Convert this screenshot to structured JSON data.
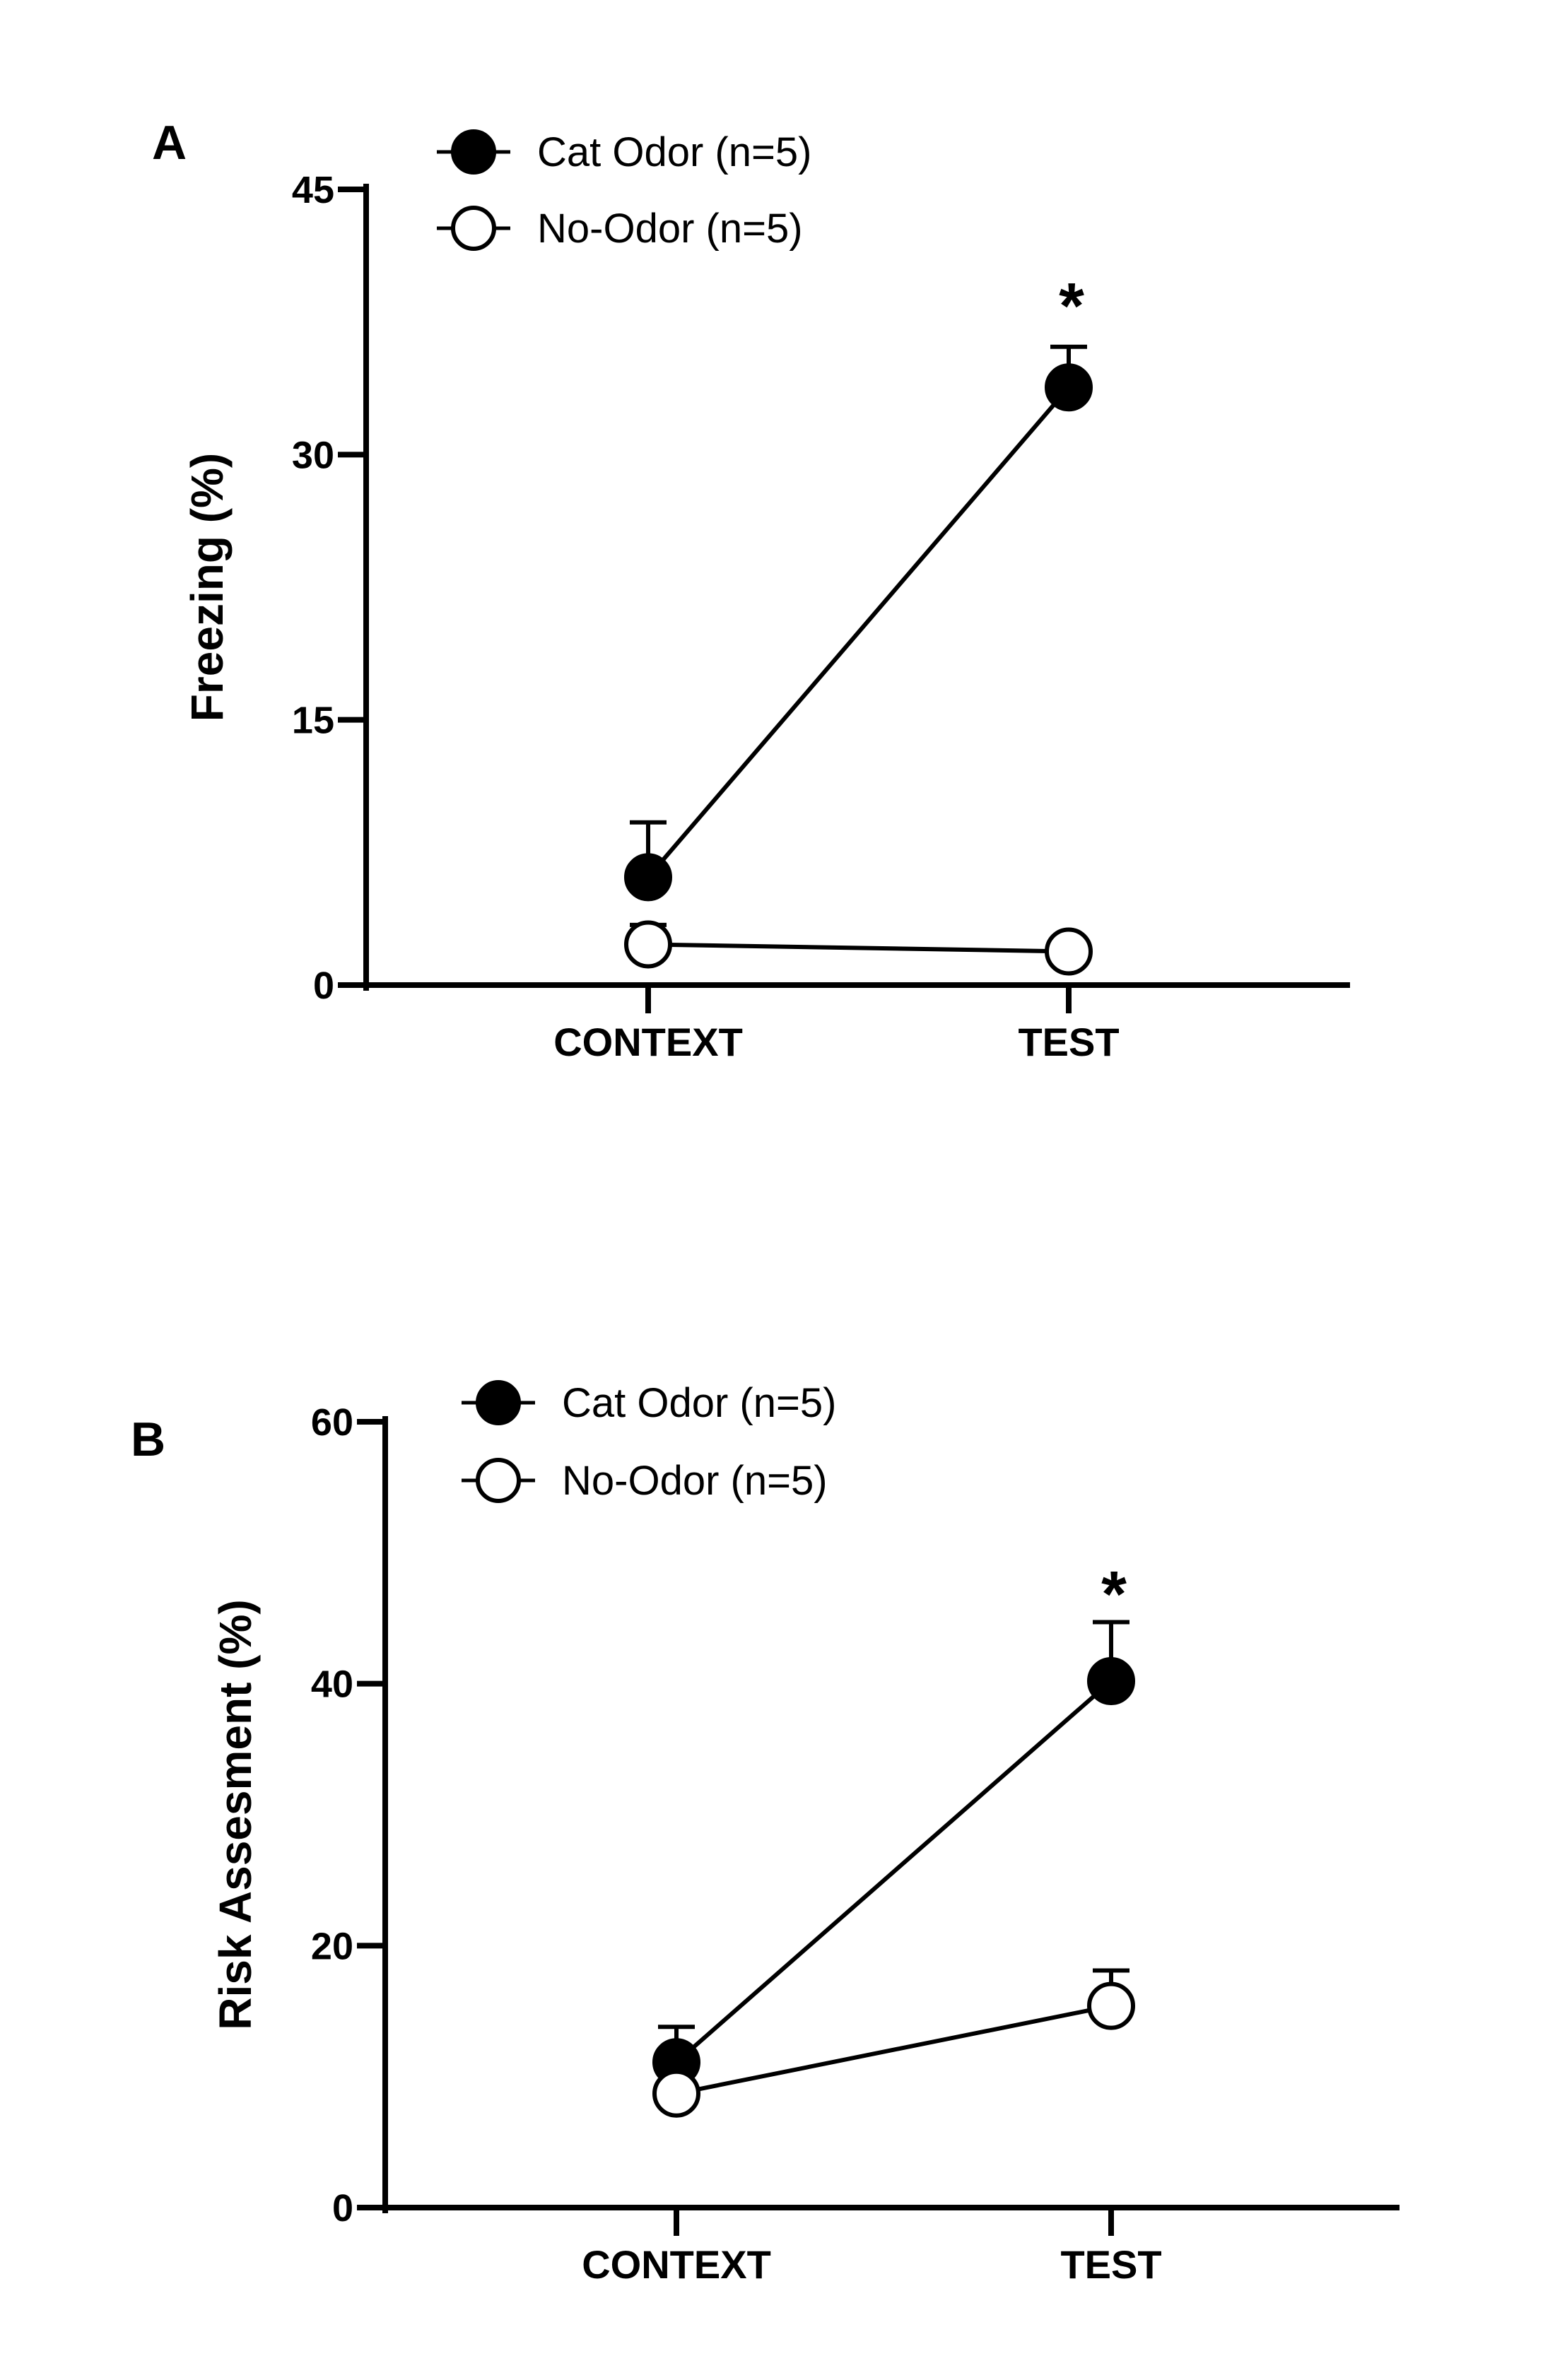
{
  "chart_data": [
    {
      "type": "line",
      "panel_label": "A",
      "categories": [
        "CONTEXT",
        "TEST"
      ],
      "ylabel": "Freezing (%)",
      "xlabel": "",
      "ylim": [
        0,
        45
      ],
      "yticks": [
        0,
        15,
        30,
        45
      ],
      "grid": false,
      "legend_placement": "top-left",
      "series": [
        {
          "name": "Cat Odor (n=5)",
          "marker": "filled-circle",
          "values": [
            6.1,
            33.8
          ],
          "errors": [
            3.1,
            2.3
          ]
        },
        {
          "name": "No-Odor (n=5)",
          "marker": "open-circle",
          "values": [
            2.3,
            1.9
          ],
          "errors": [
            1.1,
            0
          ]
        }
      ],
      "annotations": [
        {
          "text": "*",
          "category": "TEST",
          "value": 38.9
        }
      ]
    },
    {
      "type": "line",
      "panel_label": "B",
      "categories": [
        "CONTEXT",
        "TEST"
      ],
      "ylabel": "Risk Assesment (%)",
      "xlabel": "",
      "ylim": [
        0,
        60
      ],
      "yticks": [
        0,
        20,
        40,
        60
      ],
      "grid": false,
      "legend_placement": "top-left",
      "series": [
        {
          "name": "Cat Odor (n=5)",
          "marker": "filled-circle",
          "values": [
            11.1,
            40.2
          ],
          "errors": [
            2.7,
            4.5
          ]
        },
        {
          "name": "No-Odor (n=5)",
          "marker": "open-circle",
          "values": [
            8.7,
            15.4
          ],
          "errors": [
            0,
            2.7
          ]
        }
      ],
      "annotations": [
        {
          "text": "*",
          "category": "TEST",
          "value": 47.5
        }
      ]
    }
  ]
}
